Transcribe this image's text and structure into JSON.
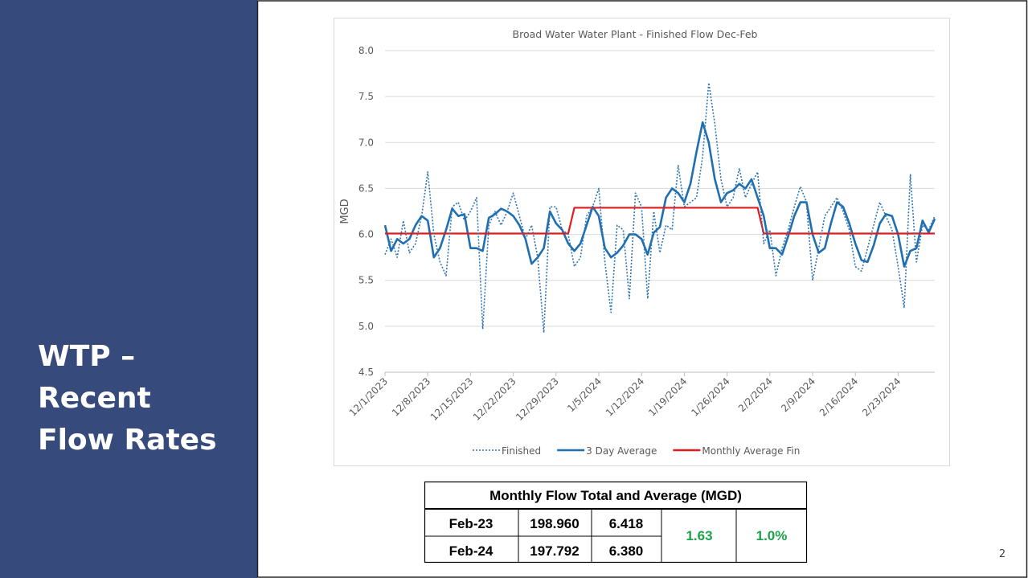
{
  "slide": {
    "title_lines": [
      "WTP –",
      "Recent",
      "Flow Rates"
    ],
    "page_number": "2"
  },
  "chart_data": {
    "type": "line",
    "title": "Broad Water Water Plant - Finished Flow Dec-Feb",
    "y_label": "MGD",
    "categories": [
      "12/1/2023",
      null,
      null,
      null,
      null,
      null,
      null,
      "12/8/2023",
      null,
      null,
      null,
      null,
      null,
      null,
      "12/15/2023",
      null,
      null,
      null,
      null,
      null,
      null,
      "12/22/2023",
      null,
      null,
      null,
      null,
      null,
      null,
      "12/29/2023",
      null,
      null,
      null,
      null,
      null,
      null,
      "1/5/2024",
      null,
      null,
      null,
      null,
      null,
      null,
      "1/12/2024",
      null,
      null,
      null,
      null,
      null,
      null,
      "1/19/2024",
      null,
      null,
      null,
      null,
      null,
      null,
      "1/26/2024",
      null,
      null,
      null,
      null,
      null,
      null,
      "2/2/2024",
      null,
      null,
      null,
      null,
      null,
      null,
      "2/9/2024",
      null,
      null,
      null,
      null,
      null,
      null,
      "2/16/2024",
      null,
      null,
      null,
      null,
      null,
      null,
      "2/23/2024",
      null,
      null,
      null,
      null,
      null,
      null
    ],
    "ylim": [
      4.5,
      8.0
    ],
    "yticks": [
      {
        "value": 4.5,
        "label": "4.5"
      },
      {
        "value": 5,
        "label": "5.0"
      },
      {
        "value": 5.5,
        "label": "5.5"
      },
      {
        "value": 6,
        "label": "6.0"
      },
      {
        "value": 6.5,
        "label": "6.5"
      },
      {
        "value": 7,
        "label": "7.0"
      },
      {
        "value": 7.5,
        "label": "7.5"
      },
      {
        "value": 8,
        "label": "8.0"
      }
    ],
    "grid": true,
    "legend": "bottom",
    "series": [
      {
        "name": "Finished",
        "color": "#2e75b6",
        "style": "dotted",
        "values": [
          5.78,
          5.95,
          5.75,
          6.15,
          5.8,
          5.9,
          6.2,
          6.68,
          6.0,
          5.7,
          5.55,
          6.3,
          6.35,
          6.15,
          6.25,
          6.4,
          4.97,
          6.1,
          6.25,
          6.1,
          6.25,
          6.45,
          6.2,
          5.95,
          6.1,
          5.75,
          4.93,
          6.3,
          6.3,
          6.05,
          6.0,
          5.65,
          5.75,
          6.2,
          6.3,
          6.5,
          5.7,
          5.15,
          6.1,
          6.05,
          5.3,
          6.45,
          6.3,
          5.3,
          6.25,
          5.8,
          6.1,
          6.05,
          6.75,
          6.3,
          6.35,
          6.4,
          6.85,
          7.65,
          7.2,
          6.6,
          6.3,
          6.4,
          6.72,
          6.4,
          6.55,
          6.68,
          5.9,
          6.05,
          5.55,
          5.85,
          6.05,
          6.3,
          6.52,
          6.35,
          5.5,
          5.85,
          6.2,
          6.3,
          6.4,
          6.25,
          6.05,
          5.65,
          5.6,
          5.85,
          6.1,
          6.35,
          6.2,
          6.05,
          5.65,
          5.2,
          6.65,
          5.7,
          6.1,
          6.05,
          6.2
        ]
      },
      {
        "name": "3 Day Average",
        "color": "#1f6fb0",
        "style": "solid",
        "values": [
          6.1,
          5.82,
          5.95,
          5.9,
          5.95,
          6.1,
          6.2,
          6.15,
          5.75,
          5.85,
          6.05,
          6.28,
          6.2,
          6.22,
          5.85,
          5.85,
          5.82,
          6.18,
          6.22,
          6.28,
          6.25,
          6.2,
          6.1,
          5.95,
          5.68,
          5.75,
          5.85,
          6.25,
          6.12,
          6.05,
          5.9,
          5.82,
          5.9,
          6.1,
          6.3,
          6.2,
          5.85,
          5.75,
          5.8,
          5.88,
          6.0,
          6.0,
          5.95,
          5.78,
          6.02,
          6.08,
          6.4,
          6.5,
          6.45,
          6.35,
          6.55,
          6.9,
          7.22,
          7.0,
          6.6,
          6.35,
          6.45,
          6.48,
          6.55,
          6.5,
          6.6,
          6.4,
          6.2,
          5.85,
          5.85,
          5.78,
          5.98,
          6.2,
          6.35,
          6.35,
          6.0,
          5.8,
          5.85,
          6.12,
          6.35,
          6.3,
          6.12,
          5.9,
          5.72,
          5.7,
          5.88,
          6.12,
          6.22,
          6.2,
          6.0,
          5.65,
          5.82,
          5.85,
          6.15,
          6.02,
          6.17
        ]
      },
      {
        "name": "Monthly Average Fin",
        "color": "#e31a1c",
        "style": "solid",
        "values": [
          6.01,
          6.01,
          6.01,
          6.01,
          6.01,
          6.01,
          6.01,
          6.01,
          6.01,
          6.01,
          6.01,
          6.01,
          6.01,
          6.01,
          6.01,
          6.01,
          6.01,
          6.01,
          6.01,
          6.01,
          6.01,
          6.01,
          6.01,
          6.01,
          6.01,
          6.01,
          6.01,
          6.01,
          6.01,
          6.01,
          6.01,
          6.29,
          6.29,
          6.29,
          6.29,
          6.29,
          6.29,
          6.29,
          6.29,
          6.29,
          6.29,
          6.29,
          6.29,
          6.29,
          6.29,
          6.29,
          6.29,
          6.29,
          6.29,
          6.29,
          6.29,
          6.29,
          6.29,
          6.29,
          6.29,
          6.29,
          6.29,
          6.29,
          6.29,
          6.29,
          6.29,
          6.29,
          6.01,
          6.01,
          6.01,
          6.01,
          6.01,
          6.01,
          6.01,
          6.01,
          6.01,
          6.01,
          6.01,
          6.01,
          6.01,
          6.01,
          6.01,
          6.01,
          6.01,
          6.01,
          6.01,
          6.01,
          6.01,
          6.01,
          6.01,
          6.01,
          6.01,
          6.01,
          6.01,
          6.01,
          6.01
        ]
      }
    ]
  },
  "table": {
    "title": "Monthly Flow Total and Average (MGD)",
    "rows": [
      [
        "Feb-23",
        "198.960",
        "6.418"
      ],
      [
        "Feb-24",
        "197.792",
        "6.380"
      ]
    ],
    "difference": "1.63",
    "percent": "1.0%"
  }
}
